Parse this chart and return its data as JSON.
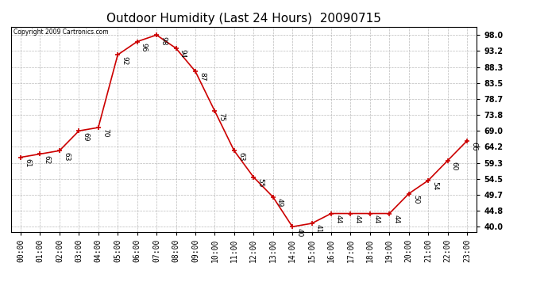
{
  "title": "Outdoor Humidity (Last 24 Hours)  20090715",
  "copyright": "Copyright 2009 Cartronics.com",
  "x_labels": [
    "00:00",
    "01:00",
    "02:00",
    "03:00",
    "04:00",
    "05:00",
    "06:00",
    "07:00",
    "08:00",
    "09:00",
    "10:00",
    "11:00",
    "12:00",
    "13:00",
    "14:00",
    "15:00",
    "16:00",
    "17:00",
    "18:00",
    "19:00",
    "20:00",
    "21:00",
    "22:00",
    "23:00"
  ],
  "y_values": [
    61,
    62,
    63,
    69,
    70,
    92,
    96,
    98,
    94,
    87,
    75,
    63,
    55,
    49,
    40,
    41,
    44,
    44,
    44,
    44,
    50,
    54,
    60,
    66
  ],
  "y_ticks": [
    40.0,
    44.8,
    49.7,
    54.5,
    59.3,
    64.2,
    69.0,
    73.8,
    78.7,
    83.5,
    88.3,
    93.2,
    98.0
  ],
  "ylim": [
    38.5,
    100.5
  ],
  "line_color": "#cc0000",
  "marker_color": "#cc0000",
  "grid_color": "#aaaaaa",
  "bg_color": "#ffffff",
  "title_fontsize": 11,
  "tick_fontsize": 7,
  "annotation_fontsize": 6.5
}
